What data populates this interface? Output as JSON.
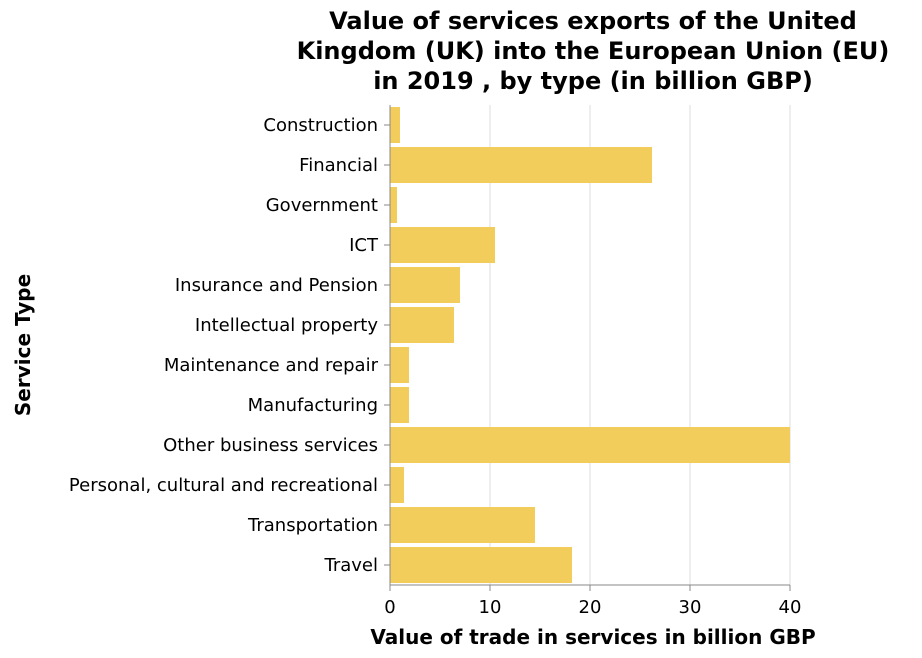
{
  "chart_data": {
    "type": "bar",
    "orientation": "horizontal",
    "title": [
      "Value of services exports of the United",
      "Kingdom (UK) into the European Union (EU)",
      "in 2019 , by type (in billion GBP)"
    ],
    "xlabel": "Value of trade in services in billion GBP",
    "ylabel": "Service Type",
    "xlim": [
      0,
      40
    ],
    "xticks": [
      0,
      10,
      20,
      30,
      40
    ],
    "grid": true,
    "bar_color": "#f2cd5c",
    "categories": [
      "Construction",
      "Financial",
      "Government",
      "ICT",
      "Insurance and Pension",
      "Intellectual property",
      "Maintenance and repair",
      "Manufacturing",
      "Other business services",
      "Personal, cultural and recreational",
      "Transportation",
      "Travel"
    ],
    "values": [
      1.0,
      26.2,
      0.7,
      10.5,
      7.0,
      6.4,
      1.9,
      1.9,
      40.0,
      1.4,
      14.5,
      18.2
    ]
  }
}
